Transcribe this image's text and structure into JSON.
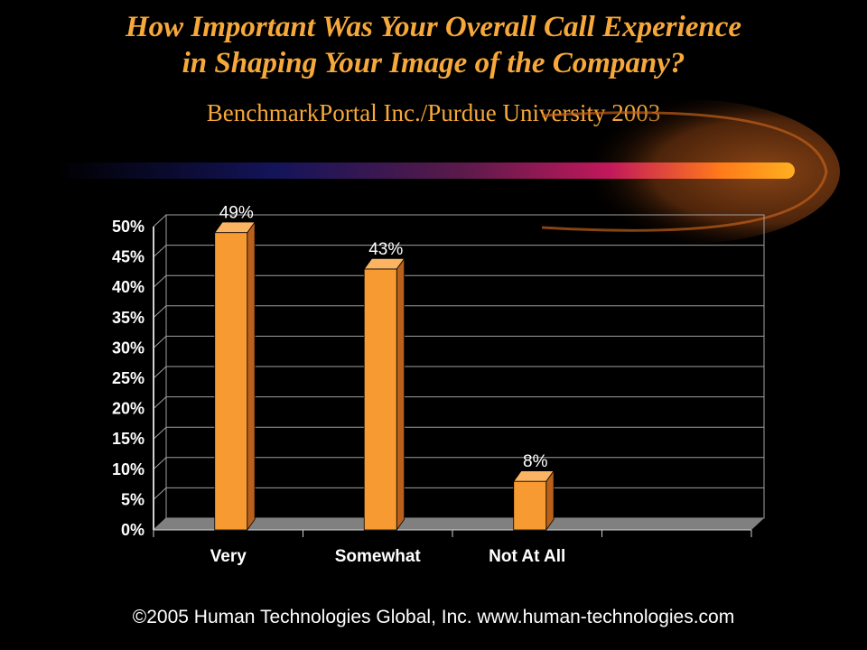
{
  "slide": {
    "title_line1": "How Important Was Your Overall Call Experience",
    "title_line2": "in Shaping Your Image of the Company?",
    "subtitle": "BenchmarkPortal  Inc./Purdue University  2003",
    "footer": "©2005 Human Technologies Global, Inc. www.human-technologies.com"
  },
  "colors": {
    "title": "#f7a83a",
    "bar_front": "#f89a32",
    "bar_side": "#b8601c",
    "bar_top": "#fbb562",
    "floor": "#808080",
    "background": "#000000"
  },
  "chart_data": {
    "type": "bar",
    "categories": [
      "Very",
      "Somewhat",
      "Not At All"
    ],
    "values": [
      49,
      43,
      8
    ],
    "data_labels": [
      "49%",
      "43%",
      "8%"
    ],
    "y_ticks": [
      "0%",
      "5%",
      "10%",
      "15%",
      "20%",
      "25%",
      "30%",
      "35%",
      "40%",
      "45%",
      "50%"
    ],
    "ylim": [
      0,
      50
    ],
    "unit": "%",
    "grid": true,
    "style": "3d-column"
  }
}
